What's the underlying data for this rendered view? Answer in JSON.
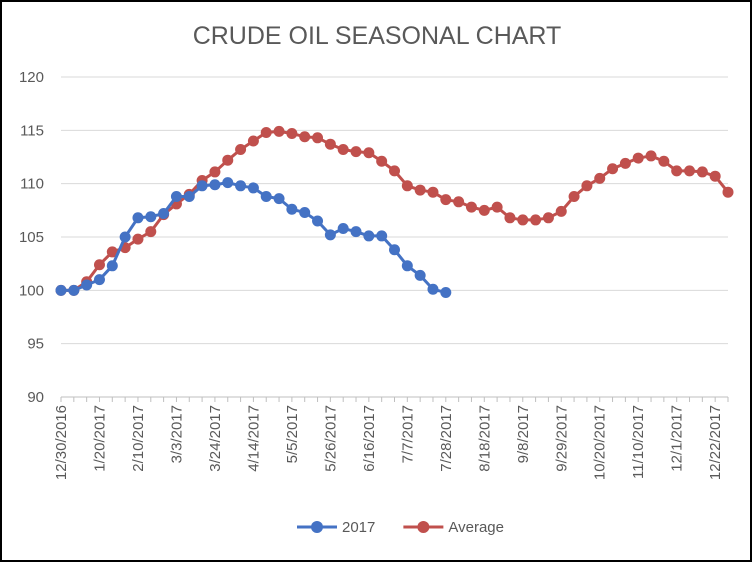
{
  "chart_data": {
    "type": "line",
    "title": "CRUDE OIL SEASONAL CHART",
    "xlabel": "",
    "ylabel": "",
    "ylim": [
      90,
      120
    ],
    "yticks": [
      90,
      95,
      100,
      105,
      110,
      115,
      120
    ],
    "x_start": "12/30/2016",
    "x_end": "12/29/2017",
    "x_step_days": 7,
    "xtick_labels": [
      "12/30/2016",
      "1/20/2017",
      "2/10/2017",
      "3/3/2017",
      "3/24/2017",
      "4/14/2017",
      "5/5/2017",
      "5/26/2017",
      "6/16/2017",
      "7/7/2017",
      "7/28/2017",
      "8/18/2017",
      "9/8/2017",
      "9/29/2017",
      "10/20/2017",
      "11/10/2017",
      "12/1/2017",
      "12/22/2017"
    ],
    "grid": "horizontal",
    "legend_position": "bottom",
    "series": [
      {
        "name": "2017",
        "color": "#4472C4",
        "values": [
          100,
          100,
          100.5,
          101,
          102.3,
          105,
          106.8,
          106.9,
          107.2,
          108.8,
          108.8,
          109.8,
          109.9,
          110.1,
          109.8,
          109.6,
          108.8,
          108.6,
          107.6,
          107.3,
          106.5,
          105.2,
          105.8,
          105.5,
          105.1,
          105.1,
          103.8,
          102.3,
          101.4,
          100.1,
          99.8
        ]
      },
      {
        "name": "Average",
        "color": "#C0504D",
        "values": [
          100,
          100,
          100.8,
          102.4,
          103.6,
          104,
          104.8,
          105.5,
          107.1,
          108.1,
          109,
          110.3,
          111.1,
          112.2,
          113.2,
          114,
          114.8,
          114.9,
          114.7,
          114.4,
          114.3,
          113.7,
          113.2,
          113,
          112.9,
          112.1,
          111.2,
          109.8,
          109.4,
          109.2,
          108.5,
          108.3,
          107.8,
          107.5,
          107.8,
          106.8,
          106.6,
          106.6,
          106.8,
          107.4,
          108.8,
          109.8,
          110.5,
          111.4,
          111.9,
          112.4,
          112.6,
          112.1,
          111.2,
          111.2,
          111.1,
          110.7,
          109.2
        ]
      }
    ]
  }
}
